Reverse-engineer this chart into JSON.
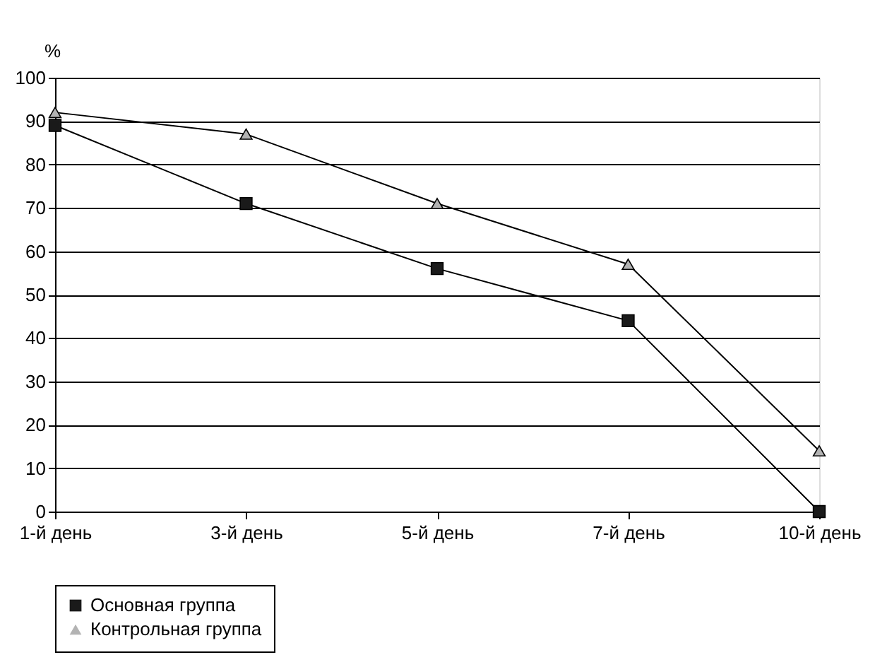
{
  "chart_data": {
    "type": "line",
    "ylabel": "%",
    "categories": [
      "1-й день",
      "3-й день",
      "5-й день",
      "7-й день",
      "10-й день"
    ],
    "series": [
      {
        "name": "Основная группа",
        "color": "#1a1a1a",
        "marker": "square",
        "values": [
          89,
          71,
          56,
          44,
          0
        ]
      },
      {
        "name": "Контрольная группа",
        "color": "#b3b3b3",
        "marker": "triangle",
        "values": [
          92,
          87,
          71,
          57,
          14
        ]
      }
    ],
    "ylim": [
      0,
      100
    ],
    "yticks": [
      0,
      10,
      20,
      30,
      40,
      50,
      60,
      70,
      80,
      90,
      100
    ],
    "grid": "y",
    "legend": "bottom",
    "line_style": "solid"
  }
}
